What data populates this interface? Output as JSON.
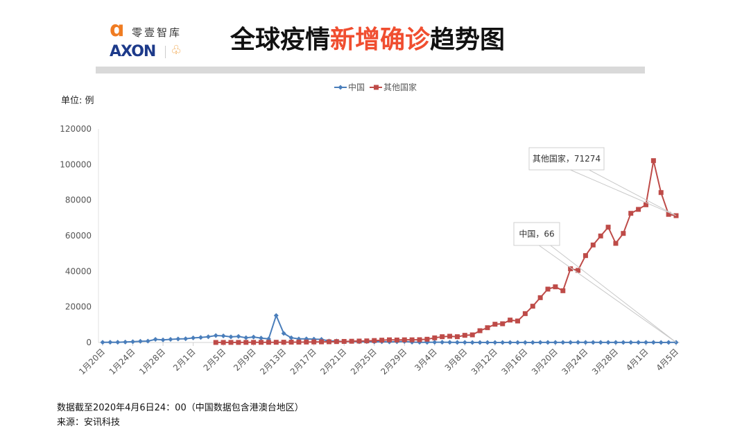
{
  "header": {
    "logo_cn": "零壹智库",
    "logo_en": "AXON",
    "title_part1": "全球疫情",
    "title_highlight": "新增确诊",
    "title_part2": "趋势图",
    "highlight_color": "#f04e30"
  },
  "unit_label": "单位: 例",
  "footer": {
    "note": "数据截至2020年4月6日24：00（中国数据包含港澳台地区）",
    "source": "来源：安讯科技"
  },
  "chart_data": {
    "type": "line",
    "legend_position": "top",
    "grid": false,
    "ylim": [
      0,
      120000
    ],
    "yticks": [
      0,
      20000,
      40000,
      60000,
      80000,
      100000,
      120000
    ],
    "categories": [
      "1月20日",
      "1月21日",
      "1月22日",
      "1月23日",
      "1月24日",
      "1月25日",
      "1月26日",
      "1月27日",
      "1月28日",
      "1月29日",
      "1月30日",
      "1月31日",
      "2月1日",
      "2月2日",
      "2月3日",
      "2月4日",
      "2月5日",
      "2月6日",
      "2月7日",
      "2月8日",
      "2月9日",
      "2月10日",
      "2月11日",
      "2月12日",
      "2月13日",
      "2月14日",
      "2月15日",
      "2月16日",
      "2月17日",
      "2月18日",
      "2月19日",
      "2月20日",
      "2月21日",
      "2月22日",
      "2月23日",
      "2月24日",
      "2月25日",
      "2月26日",
      "2月27日",
      "2月28日",
      "2月29日",
      "3月1日",
      "3月2日",
      "3月3日",
      "3月4日",
      "3月5日",
      "3月6日",
      "3月7日",
      "3月8日",
      "3月9日",
      "3月10日",
      "3月11日",
      "3月12日",
      "3月13日",
      "3月14日",
      "3月15日",
      "3月16日",
      "3月17日",
      "3月18日",
      "3月19日",
      "3月20日",
      "3月21日",
      "3月22日",
      "3月23日",
      "3月24日",
      "3月25日",
      "3月26日",
      "3月27日",
      "3月28日",
      "3月29日",
      "3月30日",
      "3月31日",
      "4月1日",
      "4月2日",
      "4月3日",
      "4月4日",
      "4月5日"
    ],
    "xtick_labels": [
      "1月20日",
      "1月24日",
      "1月28日",
      "2月1日",
      "2月5日",
      "2月9日",
      "2月13日",
      "2月17日",
      "2月21日",
      "2月25日",
      "2月29日",
      "3月4日",
      "3月8日",
      "3月12日",
      "3月16日",
      "3月20日",
      "3月24日",
      "3月28日",
      "4月1日",
      "4月5日"
    ],
    "series": [
      {
        "name": "中国",
        "color": "#4a7ebb",
        "marker": "diamond",
        "values": [
          77,
          149,
          131,
          259,
          444,
          688,
          769,
          1771,
          1459,
          1737,
          1982,
          2102,
          2590,
          2829,
          3235,
          3887,
          3694,
          3143,
          3399,
          2656,
          3062,
          2478,
          2015,
          15152,
          5090,
          2641,
          2009,
          2048,
          1886,
          1749,
          820,
          889,
          397,
          648,
          409,
          508,
          406,
          433,
          327,
          427,
          573,
          202,
          125,
          119,
          139,
          143,
          99,
          44,
          40,
          19,
          24,
          15,
          8,
          11,
          20,
          16,
          21,
          13,
          34,
          39,
          41,
          46,
          39,
          78,
          47,
          67,
          55,
          54,
          45,
          31,
          48,
          36,
          35,
          31,
          19,
          30,
          66
        ]
      },
      {
        "name": "其他国家",
        "color": "#be4b48",
        "marker": "square",
        "values": [
          null,
          null,
          null,
          null,
          null,
          null,
          null,
          null,
          null,
          null,
          null,
          null,
          null,
          null,
          null,
          20,
          30,
          40,
          30,
          60,
          70,
          80,
          100,
          120,
          150,
          180,
          200,
          250,
          300,
          350,
          400,
          500,
          600,
          700,
          800,
          900,
          1100,
          1300,
          1500,
          1400,
          1500,
          1500,
          1560,
          1820,
          2600,
          3250,
          3500,
          3250,
          4030,
          4280,
          6620,
          8310,
          10260,
          10520,
          12600,
          12080,
          16230,
          20390,
          25190,
          30000,
          31290,
          29090,
          41420,
          40510,
          48830,
          54800,
          59860,
          64800,
          55710,
          61290,
          72580,
          74800,
          77400,
          102190,
          84260,
          72000,
          71274
        ]
      }
    ],
    "annotations": [
      {
        "series": "其他国家",
        "text": "其他国家，71274"
      },
      {
        "series": "中国",
        "text": "中国，66"
      }
    ]
  }
}
